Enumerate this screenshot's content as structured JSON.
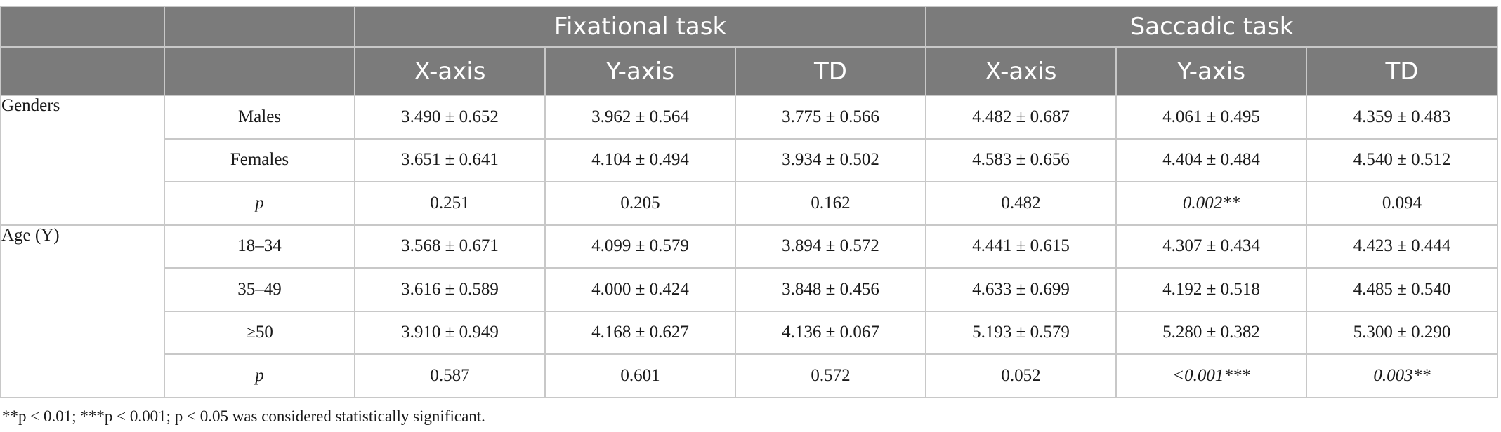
{
  "header": {
    "fixational": "Fixational task",
    "saccadic": "Saccadic task",
    "x_axis": "X-axis",
    "y_axis": "Y-axis",
    "td": "TD"
  },
  "groups": {
    "genders": "Genders",
    "age": "Age (Y)"
  },
  "rows": {
    "males": {
      "label": "Males",
      "v": [
        "3.490 ± 0.652",
        "3.962 ± 0.564",
        "3.775 ± 0.566",
        "4.482 ± 0.687",
        "4.061 ± 0.495",
        "4.359 ± 0.483"
      ]
    },
    "females": {
      "label": "Females",
      "v": [
        "3.651 ± 0.641",
        "4.104 ± 0.494",
        "3.934 ± 0.502",
        "4.583 ± 0.656",
        "4.404 ± 0.484",
        "4.540 ± 0.512"
      ]
    },
    "gender_p": {
      "label": "p",
      "v": [
        "0.251",
        "0.205",
        "0.162",
        "0.482",
        "0.002**",
        "0.094"
      ]
    },
    "age_18_34": {
      "label": "18–34",
      "v": [
        "3.568 ± 0.671",
        "4.099 ± 0.579",
        "3.894 ± 0.572",
        "4.441 ± 0.615",
        "4.307 ± 0.434",
        "4.423 ± 0.444"
      ]
    },
    "age_35_49": {
      "label": "35–49",
      "v": [
        "3.616 ± 0.589",
        "4.000 ± 0.424",
        "3.848 ± 0.456",
        "4.633 ± 0.699",
        "4.192 ± 0.518",
        "4.485 ± 0.540"
      ]
    },
    "age_50": {
      "label": "≥50",
      "v": [
        "3.910 ± 0.949",
        "4.168 ± 0.627",
        "4.136 ± 0.067",
        "5.193 ± 0.579",
        "5.280 ± 0.382",
        "5.300 ± 0.290"
      ]
    },
    "age_p": {
      "label": "p",
      "v": [
        "0.587",
        "0.601",
        "0.572",
        "0.052",
        "<0.001***",
        "0.003**"
      ]
    }
  },
  "footnote": "**p < 0.01; ***p < 0.001; p < 0.05 was considered statistically significant."
}
